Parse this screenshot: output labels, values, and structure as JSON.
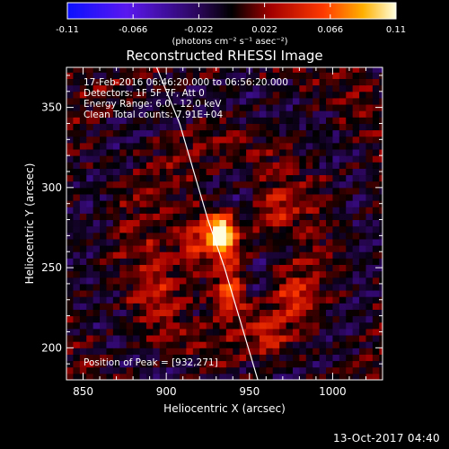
{
  "colors": {
    "background": "#000000",
    "foreground": "#ffffff",
    "limb_line": "#ffffff"
  },
  "colorbar": {
    "tick_labels": [
      "-0.11",
      "-0.066",
      "-0.022",
      "0.022",
      "0.066",
      "0.11"
    ],
    "units": "(photons cm⁻² s⁻¹ asec⁻²)",
    "range": [
      -0.11,
      0.11
    ]
  },
  "plot": {
    "title": "Reconstructed RHESSI Image",
    "info_lines": [
      "17-Feb-2016 06:46:20.000 to 06:56:20.000",
      "Detectors: 1F 5F 7F, Att 0",
      "Energy Range: 6.0 - 12.0 keV",
      "Clean     Total counts: 7.91E+04"
    ],
    "peak_label": "Position of Peak = [932,271]",
    "footer_timestamp": "13-Oct-2017 04:40"
  },
  "chart_data": {
    "type": "heatmap",
    "title": "Reconstructed RHESSI Image",
    "xlabel": "Heliocentric X (arcsec)",
    "ylabel": "Heliocentric Y (arcsec)",
    "xlim": [
      840,
      1030
    ],
    "ylim": [
      180,
      375
    ],
    "xticks": [
      850,
      900,
      950,
      1000
    ],
    "yticks": [
      200,
      250,
      300,
      350
    ],
    "colorbar_range": [
      -0.11,
      0.11
    ],
    "peak_position": [
      932,
      271
    ],
    "limb_curve": {
      "x": [
        893,
        908,
        925,
        935,
        945,
        955
      ],
      "y": [
        378,
        340,
        280,
        250,
        215,
        180
      ]
    },
    "sources": [
      {
        "x": 933,
        "y": 272,
        "amplitude": 0.11,
        "sigma_x": 6,
        "sigma_y": 9
      },
      {
        "x": 938,
        "y": 235,
        "amplitude": 0.07,
        "sigma_x": 7,
        "sigma_y": 12
      },
      {
        "x": 915,
        "y": 265,
        "amplitude": 0.045,
        "sigma_x": 8,
        "sigma_y": 20
      },
      {
        "x": 965,
        "y": 285,
        "amplitude": 0.05,
        "sigma_x": 9,
        "sigma_y": 12
      },
      {
        "x": 975,
        "y": 235,
        "amplitude": 0.04,
        "sigma_x": 8,
        "sigma_y": 11
      },
      {
        "x": 960,
        "y": 210,
        "amplitude": 0.035,
        "sigma_x": 8,
        "sigma_y": 8
      },
      {
        "x": 895,
        "y": 245,
        "amplitude": 0.03,
        "sigma_x": 8,
        "sigma_y": 22
      }
    ]
  }
}
